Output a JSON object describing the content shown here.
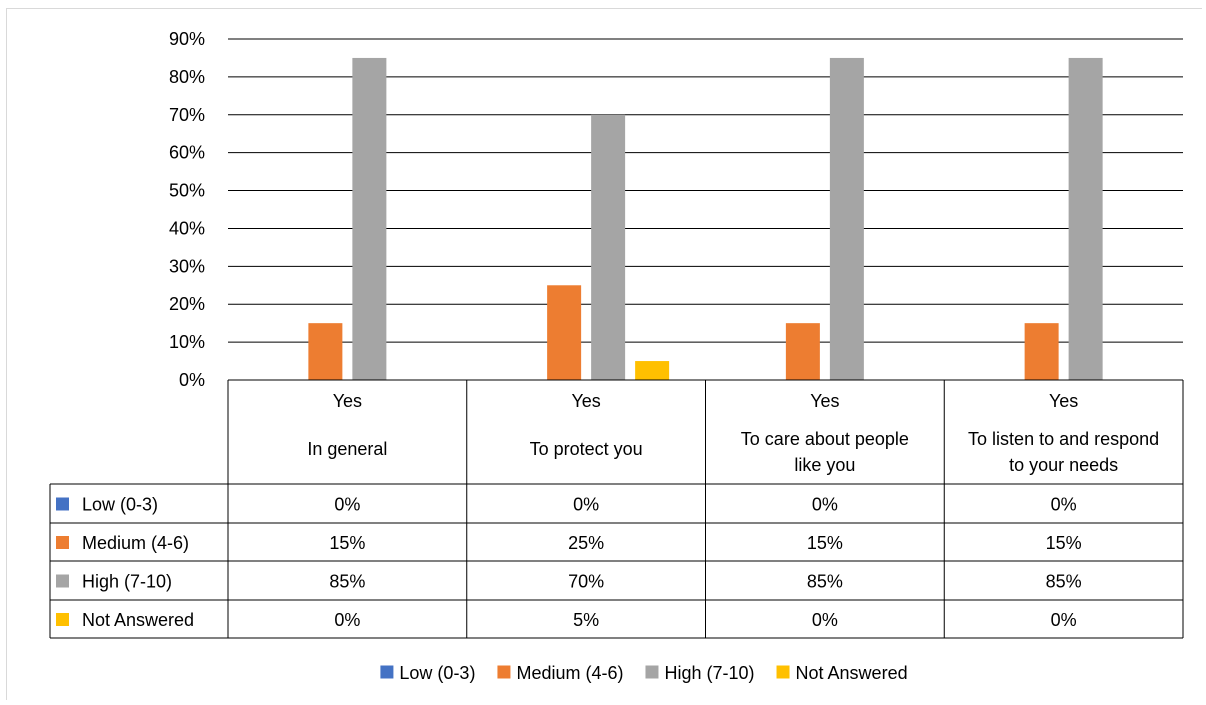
{
  "chart_data": {
    "type": "bar",
    "groups": [
      {
        "header": "Yes",
        "label": "In general"
      },
      {
        "header": "Yes",
        "label": "To protect you"
      },
      {
        "header": "Yes",
        "label": "To care about people like you"
      },
      {
        "header": "Yes",
        "label": "To listen to and respond to your needs"
      }
    ],
    "series": [
      {
        "name": "Low (0-3)",
        "color": "#4472C4",
        "values": [
          0,
          0,
          0,
          0
        ],
        "labels": [
          "0%",
          "0%",
          "0%",
          "0%"
        ]
      },
      {
        "name": "Medium (4-6)",
        "color": "#ED7D31",
        "values": [
          15,
          25,
          15,
          15
        ],
        "labels": [
          "15%",
          "25%",
          "15%",
          "15%"
        ]
      },
      {
        "name": "High (7-10)",
        "color": "#A5A5A5",
        "values": [
          85,
          70,
          85,
          85
        ],
        "labels": [
          "85%",
          "70%",
          "85%",
          "85%"
        ]
      },
      {
        "name": "Not Answered",
        "color": "#FFC000",
        "values": [
          0,
          5,
          0,
          0
        ],
        "labels": [
          "0%",
          "5%",
          "0%",
          "0%"
        ]
      }
    ],
    "y_ticks": [
      "0%",
      "10%",
      "20%",
      "30%",
      "40%",
      "50%",
      "60%",
      "70%",
      "80%",
      "90%"
    ],
    "ylim": [
      0,
      90
    ],
    "y_unit": "%",
    "grid": true,
    "legend_position": "bottom",
    "data_table": true
  }
}
